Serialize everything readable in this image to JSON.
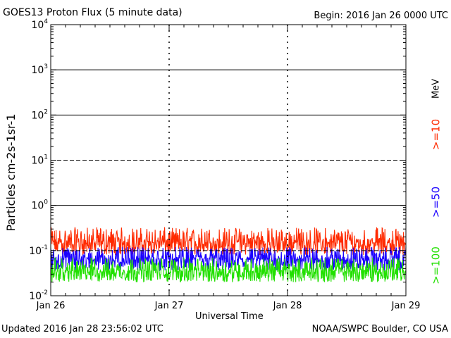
{
  "header": {
    "title": "GOES13 Proton Flux (5 minute data)",
    "begin": "Begin: 2016 Jan 26 0000 UTC"
  },
  "footer": {
    "updated": "Updated 2016 Jan 28 23:56:02 UTC",
    "credit": "NOAA/SWPC Boulder, CO USA"
  },
  "colors": {
    "ge10": "#ff2a00",
    "ge50": "#1a00ff",
    "ge100": "#22e000",
    "axis": "#000000"
  },
  "chart_data": {
    "type": "line",
    "title": "GOES13 Proton Flux (5 minute data)",
    "xlabel": "Universal Time",
    "ylabel": "Particles cm-2s-1sr-1",
    "yscale": "log",
    "ylim": [
      0.01,
      10000
    ],
    "xlim": [
      0,
      3
    ],
    "x_ticks": [
      {
        "x": 0,
        "label": "Jan 26"
      },
      {
        "x": 1,
        "label": "Jan 27"
      },
      {
        "x": 2,
        "label": "Jan 28"
      },
      {
        "x": 3,
        "label": "Jan 29"
      }
    ],
    "y_ticks": [
      {
        "base": "10",
        "exp": "-2",
        "value": 0.01
      },
      {
        "base": "10",
        "exp": "-1",
        "value": 0.1
      },
      {
        "base": "10",
        "exp": "0",
        "value": 1
      },
      {
        "base": "10",
        "exp": "1",
        "value": 10
      },
      {
        "base": "10",
        "exp": "2",
        "value": 100
      },
      {
        "base": "10",
        "exp": "3",
        "value": 1000
      },
      {
        "base": "10",
        "exp": "4",
        "value": 10000
      }
    ],
    "reference_lines": [
      {
        "value": 10,
        "style": "dashed"
      },
      {
        "value": 0.1,
        "style": "dashed"
      }
    ],
    "right_unit": "MeV",
    "series": [
      {
        "name": ">=10",
        "color": "#ff2a00",
        "typical": 0.15,
        "min": 0.08,
        "max": 0.33
      },
      {
        "name": ">=50",
        "color": "#1a00ff",
        "typical": 0.065,
        "min": 0.035,
        "max": 0.12
      },
      {
        "name": ">=100",
        "color": "#22e000",
        "typical": 0.035,
        "min": 0.02,
        "max": 0.07
      }
    ],
    "grid": true
  }
}
